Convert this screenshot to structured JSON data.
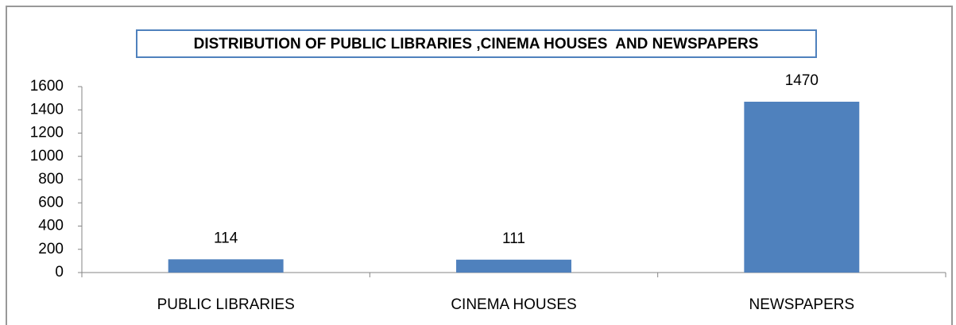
{
  "chart_data": {
    "type": "bar",
    "title": "DISTRIBUTION OF PUBLIC LIBRARIES ,CINEMA HOUSES  AND NEWSPAPERS",
    "categories": [
      "PUBLIC LIBRARIES",
      "CINEMA HOUSES",
      "NEWSPAPERS"
    ],
    "values": [
      114,
      111,
      1470
    ],
    "color": "#4f81bd",
    "ylim": [
      0,
      1600
    ],
    "yticks": [
      0,
      200,
      400,
      600,
      800,
      1000,
      1200,
      1400,
      1600
    ],
    "grid": false
  }
}
